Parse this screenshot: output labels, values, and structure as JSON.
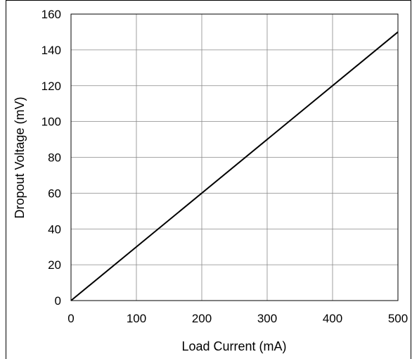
{
  "chart_data": {
    "type": "line",
    "title": "",
    "xlabel": "Load Current (mA)",
    "ylabel": "Dropout Voltage (mV)",
    "xlim": [
      0,
      500
    ],
    "ylim": [
      0,
      160
    ],
    "x_ticks": [
      0,
      100,
      200,
      300,
      400,
      500
    ],
    "y_ticks": [
      0,
      20,
      40,
      60,
      80,
      100,
      120,
      140,
      160
    ],
    "grid": true,
    "legend": "none",
    "series": [
      {
        "color": "#000000",
        "x": [
          0,
          500
        ],
        "y": [
          0,
          150
        ]
      }
    ]
  }
}
